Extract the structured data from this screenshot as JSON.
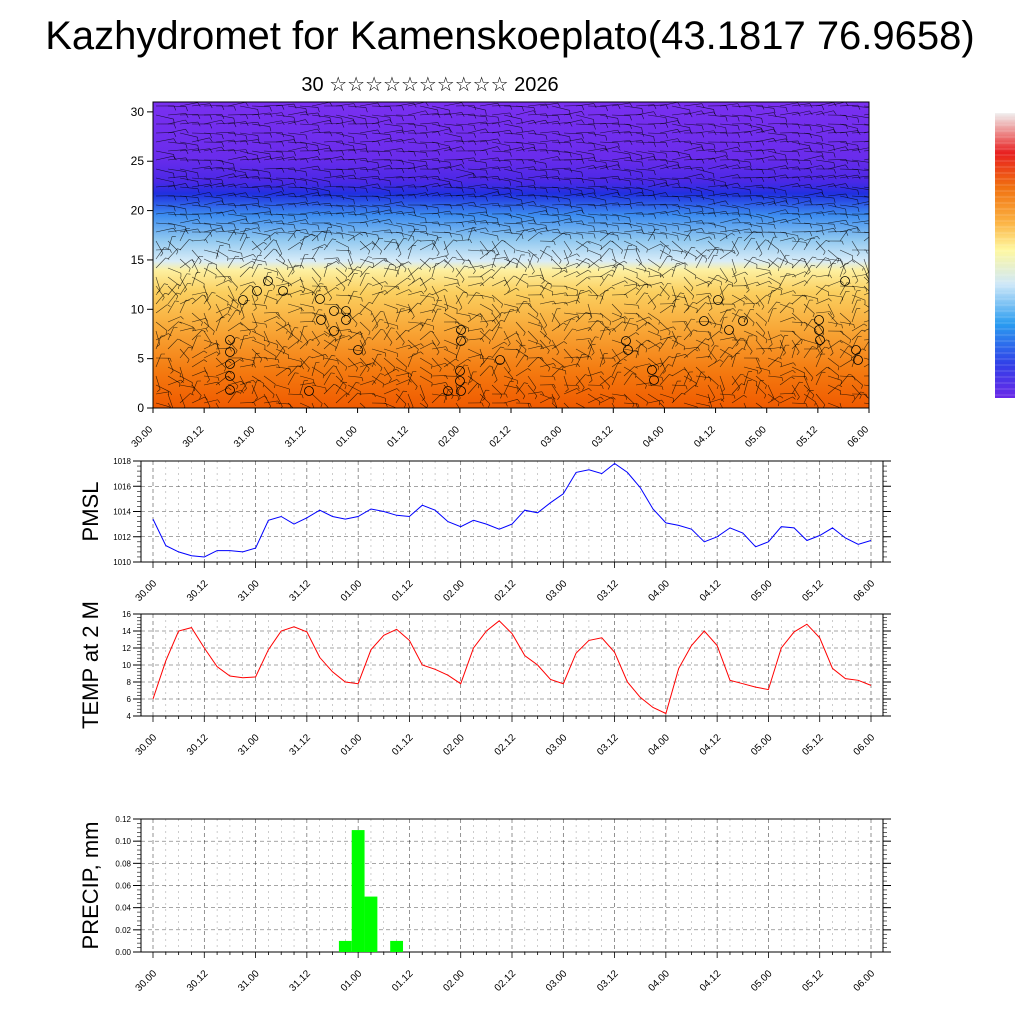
{
  "title": "Kazhydromet for Kamenskoeplato(43.1817 76.9658)",
  "subtitle": "30 ☆☆☆☆☆☆☆☆☆☆ 2026",
  "time_labels": [
    "30.00",
    "30.12",
    "31.00",
    "31.12",
    "01.00",
    "01.12",
    "02.00",
    "02.12",
    "03.00",
    "03.12",
    "04.00",
    "04.12",
    "05.00",
    "05.12",
    "06.00"
  ],
  "colors": {
    "pmsl": "#0000ff",
    "temp": "#ff0000",
    "precip": "#00ff00"
  },
  "chart_data": [
    {
      "type": "heatmap",
      "name": "cross-section",
      "title": "",
      "ylim": [
        0,
        31
      ],
      "yticks": [
        "0",
        "5",
        "10",
        "15",
        "20",
        "25",
        "30"
      ],
      "x": [
        "30.00",
        "30.12",
        "31.00",
        "31.12",
        "01.00",
        "01.12",
        "02.00",
        "02.12",
        "03.00",
        "03.12",
        "04.00",
        "04.12",
        "05.00",
        "05.12",
        "06.00"
      ],
      "colorbar": {
        "label": "",
        "position": "right"
      },
      "overlay": "wind barbs"
    },
    {
      "type": "line",
      "name": "pmsl",
      "ylabel": "PMSL",
      "ylim": [
        1010,
        1018
      ],
      "yticks": [
        "1010",
        "1012",
        "1014",
        "1016",
        "1018"
      ],
      "series": [
        {
          "name": "PMSL",
          "values": [
            1013.4,
            1011.3,
            1010.8,
            1010.5,
            1010.4,
            1010.9,
            1010.9,
            1010.8,
            1011.1,
            1013.3,
            1013.6,
            1013.0,
            1013.5,
            1014.1,
            1013.6,
            1013.4,
            1013.6,
            1014.2,
            1014.0,
            1013.7,
            1013.6,
            1014.5,
            1014.1,
            1013.2,
            1012.8,
            1013.3,
            1013.0,
            1012.6,
            1013.0,
            1014.1,
            1013.9,
            1014.7,
            1015.4,
            1017.1,
            1017.3,
            1017.0,
            1017.8,
            1017.1,
            1015.9,
            1014.2,
            1013.1,
            1012.9,
            1012.6,
            1011.6,
            1012.0,
            1012.7,
            1012.3,
            1011.2,
            1011.6,
            1012.8,
            1012.7,
            1011.7,
            1012.1,
            1012.7,
            1011.9,
            1011.4,
            1011.7
          ]
        }
      ]
    },
    {
      "type": "line",
      "name": "temp",
      "ylabel": "TEMP at 2 M",
      "ylim": [
        4,
        16
      ],
      "yticks": [
        "4",
        "6",
        "8",
        "10",
        "12",
        "14",
        "16"
      ],
      "series": [
        {
          "name": "TEMP at 2 M",
          "values": [
            6.0,
            10.5,
            14.0,
            14.4,
            12.0,
            9.8,
            8.7,
            8.5,
            8.6,
            11.8,
            14.0,
            14.5,
            13.9,
            10.9,
            9.2,
            8.0,
            7.8,
            11.8,
            13.5,
            14.2,
            12.9,
            10.0,
            9.5,
            8.8,
            7.8,
            12.0,
            14.0,
            15.2,
            13.7,
            11.1,
            10.0,
            8.3,
            7.8,
            11.4,
            12.9,
            13.2,
            11.5,
            8.0,
            6.2,
            5.0,
            4.3,
            9.6,
            12.3,
            14.0,
            12.3,
            8.2,
            7.8,
            7.4,
            7.1,
            12.0,
            13.9,
            14.8,
            13.2,
            9.6,
            8.4,
            8.2,
            7.6
          ]
        }
      ]
    },
    {
      "type": "bar",
      "name": "precip",
      "ylabel": "PRECIP, mm",
      "ylim": [
        0,
        0.12
      ],
      "yticks": [
        "0.00",
        "0.02",
        "0.04",
        "0.06",
        "0.08",
        "0.10",
        "0.12"
      ],
      "series": [
        {
          "name": "PRECIP, mm",
          "values": [
            0,
            0,
            0,
            0,
            0,
            0,
            0,
            0,
            0,
            0,
            0,
            0,
            0,
            0,
            0,
            0.01,
            0.11,
            0.05,
            0,
            0.01,
            0,
            0,
            0,
            0,
            0,
            0,
            0,
            0,
            0,
            0,
            0,
            0,
            0,
            0,
            0,
            0,
            0,
            0,
            0,
            0,
            0,
            0,
            0,
            0,
            0,
            0,
            0,
            0,
            0,
            0,
            0,
            0,
            0,
            0,
            0,
            0,
            0
          ]
        }
      ]
    }
  ]
}
